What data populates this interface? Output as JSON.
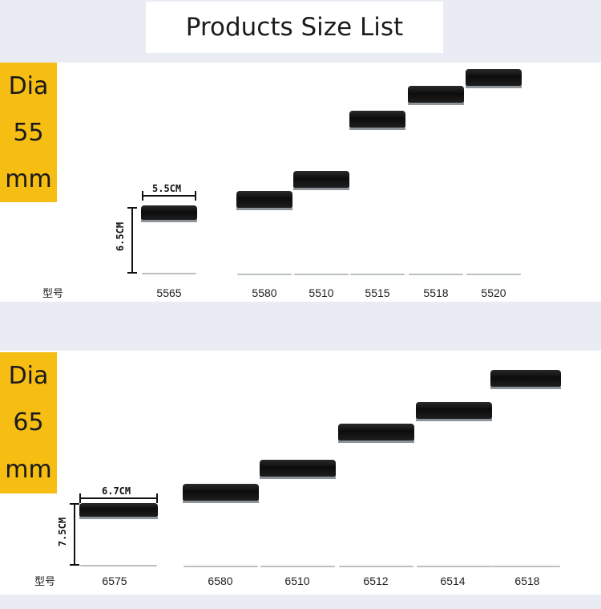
{
  "title": "Products Size List",
  "model_word": "型号",
  "sections": [
    {
      "tag": [
        "Dia",
        "55",
        "mm"
      ],
      "width_dim": "5.5CM",
      "height_dim": "6.5CM",
      "models": [
        "5565",
        "5580",
        "5510",
        "5515",
        "5518",
        "5520"
      ]
    },
    {
      "tag": [
        "Dia",
        "65",
        "mm"
      ],
      "width_dim": "6.7CM",
      "height_dim": "7.5CM",
      "models": [
        "6575",
        "6580",
        "6510",
        "6512",
        "6514",
        "6518"
      ]
    }
  ],
  "colors": {
    "tag_bg": "#f6bd12",
    "panel_bg": "#ffffff",
    "page_bg": "#e9edf3",
    "lid": "#111111"
  }
}
